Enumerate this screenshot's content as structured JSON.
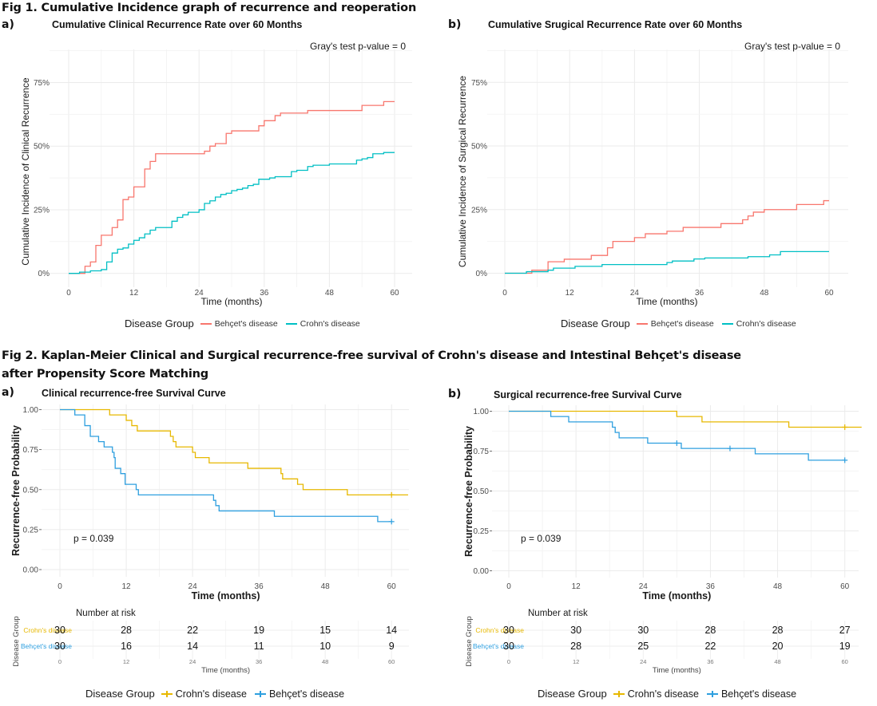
{
  "fig1": {
    "title": "Fig 1. Cumulative Incidence graph of recurrence and reoperation",
    "legend_title": "Disease Group",
    "legend_items": [
      "Behçet's disease",
      "Crohn's disease"
    ]
  },
  "fig2": {
    "title_line1": "Fig 2. Kaplan-Meier Clinical and Surgical recurrence-free survival of Crohn's disease and Intestinal Behçet's disease",
    "title_line2": "after Propensity Score Matching",
    "legend_title": "Disease Group",
    "legend_items": [
      "Crohn's disease",
      "Behçet's disease"
    ],
    "risk_title": "Number at risk",
    "risk_ylabel": "Disease Group",
    "risk_xlabel": "Time (months)",
    "risk_groups": [
      "Crohn's disease",
      "Behçet's disease"
    ]
  },
  "colors": {
    "behcet_ci": "#F8766D",
    "crohn_ci": "#00BFC4",
    "crohn_km": "#E7B800",
    "behcet_km": "#2E9FDF"
  },
  "chart_data": [
    {
      "id": "fig1a",
      "panel_label": "a)",
      "type": "line",
      "step": true,
      "title": "Cumulative Clinical Recurrence Rate over 60 Months",
      "xlabel": "Time (months)",
      "ylabel": "Cumulative Incidence of Clinical Recurrence",
      "xlim": [
        0,
        60
      ],
      "ylim": [
        0,
        0.9
      ],
      "xticks": [
        0,
        12,
        24,
        36,
        48,
        60
      ],
      "yticks": [
        0,
        0.25,
        0.5,
        0.75
      ],
      "ytick_labels": [
        "0%",
        "25%",
        "50%",
        "75%"
      ],
      "annotation": "Gray's test p-value = 0",
      "grid": true,
      "legend_position": "bottom",
      "series": [
        {
          "name": "Behçet's disease",
          "color_key": "behcet_ci",
          "x": [
            0,
            2.0,
            3.0,
            4.0,
            5.0,
            6.0,
            8.0,
            9.0,
            10.0,
            11.0,
            12.0,
            14.0,
            15.0,
            16.0,
            25.0,
            26.0,
            27.0,
            29.0,
            30.0,
            35.0,
            36.0,
            38.0,
            39.0,
            44.0,
            54.0,
            58.0,
            60.0
          ],
          "y": [
            0,
            0.0,
            0.028,
            0.045,
            0.11,
            0.15,
            0.18,
            0.21,
            0.29,
            0.3,
            0.34,
            0.41,
            0.44,
            0.47,
            0.48,
            0.5,
            0.51,
            0.55,
            0.56,
            0.58,
            0.6,
            0.62,
            0.63,
            0.64,
            0.66,
            0.675,
            0.675
          ]
        },
        {
          "name": "Crohn's disease",
          "color_key": "crohn_ci",
          "x": [
            0,
            2.0,
            4.0,
            6.0,
            7.0,
            8.0,
            9.0,
            10.0,
            11.0,
            12.0,
            13.0,
            14.0,
            15.0,
            16.0,
            19.0,
            20.0,
            21.0,
            22.0,
            24.0,
            25.0,
            26.0,
            27.0,
            28.0,
            29.0,
            30.0,
            31.0,
            32.0,
            33.0,
            34.0,
            35.0,
            37.0,
            38.0,
            41.0,
            42.0,
            44.0,
            45.0,
            48.0,
            53.0,
            54.0,
            55.0,
            56.0,
            58.0,
            60.0
          ],
          "y": [
            0,
            0.005,
            0.01,
            0.015,
            0.045,
            0.08,
            0.095,
            0.1,
            0.115,
            0.13,
            0.14,
            0.155,
            0.17,
            0.18,
            0.205,
            0.22,
            0.23,
            0.24,
            0.25,
            0.275,
            0.285,
            0.3,
            0.31,
            0.315,
            0.325,
            0.33,
            0.335,
            0.345,
            0.35,
            0.37,
            0.375,
            0.38,
            0.4,
            0.405,
            0.42,
            0.425,
            0.43,
            0.445,
            0.45,
            0.455,
            0.47,
            0.475,
            0.475
          ]
        }
      ]
    },
    {
      "id": "fig1b",
      "panel_label": "b)",
      "type": "line",
      "step": true,
      "title": "Cumulative Srugical Recurrence Rate over 60 Months",
      "xlabel": "Time (months)",
      "ylabel": "Cumulative Incidence of Surgical Recurrence",
      "xlim": [
        0,
        60
      ],
      "ylim": [
        0,
        0.9
      ],
      "xticks": [
        0,
        12,
        24,
        36,
        48,
        60
      ],
      "yticks": [
        0,
        0.25,
        0.5,
        0.75
      ],
      "ytick_labels": [
        "0%",
        "25%",
        "50%",
        "75%"
      ],
      "annotation": "Gray's test p-value = 0",
      "grid": true,
      "legend_position": "bottom",
      "series": [
        {
          "name": "Behçet's disease",
          "color_key": "behcet_ci",
          "x": [
            0,
            4.0,
            5.0,
            8.0,
            11.0,
            16.0,
            19.0,
            20.0,
            24.0,
            26.0,
            30.0,
            33.0,
            40.0,
            44.0,
            45.0,
            46.0,
            48.0,
            54.0,
            59.0,
            60.0
          ],
          "y": [
            0,
            0.0,
            0.012,
            0.045,
            0.055,
            0.07,
            0.1,
            0.125,
            0.14,
            0.155,
            0.165,
            0.18,
            0.195,
            0.21,
            0.225,
            0.24,
            0.25,
            0.27,
            0.285,
            0.285
          ]
        },
        {
          "name": "Crohn's disease",
          "color_key": "crohn_ci",
          "x": [
            0,
            4.0,
            8.0,
            9.0,
            13.0,
            18.0,
            30.0,
            31.0,
            35.0,
            37.0,
            45.0,
            49.0,
            51.0,
            60.0
          ],
          "y": [
            0,
            0.006,
            0.012,
            0.02,
            0.027,
            0.034,
            0.042,
            0.048,
            0.056,
            0.06,
            0.065,
            0.072,
            0.085,
            0.085
          ]
        }
      ]
    },
    {
      "id": "fig2a",
      "panel_label": "a)",
      "type": "line",
      "step": true,
      "title": "Clinical recurrence-free Survival Curve",
      "xlabel": "Time (months)",
      "ylabel": "Recurrence-free Probability",
      "xlim": [
        0,
        63
      ],
      "ylim": [
        0,
        1
      ],
      "xticks": [
        0,
        12,
        24,
        36,
        48,
        60
      ],
      "yticks": [
        0,
        0.25,
        0.5,
        0.75,
        1.0
      ],
      "ytick_labels": [
        "0.00",
        "0.25",
        "0.50",
        "0.75",
        "1.00"
      ],
      "annotation": "p = 0.039",
      "grid": true,
      "legend_position": "bottom",
      "series": [
        {
          "name": "Crohn's disease",
          "color_key": "crohn_km",
          "x": [
            0,
            9.0,
            12.0,
            13.0,
            14.0,
            20.0,
            20.5,
            21.0,
            24.0,
            24.5,
            27.0,
            34.0,
            40.0,
            40.3,
            43.0,
            44.0,
            52.0,
            63.0
          ],
          "y": [
            1.0,
            0.967,
            0.933,
            0.9,
            0.867,
            0.833,
            0.8,
            0.767,
            0.733,
            0.7,
            0.667,
            0.633,
            0.6,
            0.567,
            0.533,
            0.5,
            0.467,
            0.467
          ],
          "censor_x": [
            60
          ],
          "censor_y": [
            0.467
          ]
        },
        {
          "name": "Behçet's disease",
          "color_key": "behcet_km",
          "x": [
            0,
            2.7,
            4.5,
            5.5,
            7.0,
            8.0,
            9.5,
            9.8,
            10.0,
            11.0,
            11.8,
            13.8,
            14.2,
            27.8,
            28.2,
            28.8,
            38.8,
            57.5,
            60.0
          ],
          "y": [
            1.0,
            0.967,
            0.9,
            0.833,
            0.8,
            0.767,
            0.733,
            0.7,
            0.633,
            0.6,
            0.533,
            0.5,
            0.467,
            0.433,
            0.4,
            0.367,
            0.333,
            0.3,
            0.3
          ],
          "censor_x": [
            60
          ],
          "censor_y": [
            0.3
          ]
        }
      ],
      "risk_table": {
        "times": [
          0,
          12,
          24,
          36,
          48,
          60
        ],
        "rows": [
          {
            "group": "Crohn's disease",
            "values": [
              30,
              28,
              22,
              19,
              15,
              14
            ]
          },
          {
            "group": "Behçet's disease",
            "values": [
              30,
              16,
              14,
              11,
              10,
              9
            ]
          }
        ]
      }
    },
    {
      "id": "fig2b",
      "panel_label": "b)",
      "type": "line",
      "step": true,
      "title": "Surgical recurrence-free Survival Curve",
      "xlabel": "Time (months)",
      "ylabel": "Recurrence-free Probability",
      "xlim": [
        0,
        63
      ],
      "ylim": [
        0,
        1
      ],
      "xticks": [
        0,
        12,
        24,
        36,
        48,
        60
      ],
      "yticks": [
        0,
        0.25,
        0.5,
        0.75,
        1.0
      ],
      "ytick_labels": [
        "0.00",
        "0.25",
        "0.50",
        "0.75",
        "1.00"
      ],
      "annotation": "p = 0.039",
      "grid": true,
      "legend_position": "bottom",
      "series": [
        {
          "name": "Crohn's disease",
          "color_key": "crohn_km",
          "x": [
            0,
            30.0,
            34.5,
            50.0,
            63.0
          ],
          "y": [
            1.0,
            0.967,
            0.933,
            0.9,
            0.9
          ],
          "censor_x": [
            60
          ],
          "censor_y": [
            0.9
          ]
        },
        {
          "name": "Behçet's disease",
          "color_key": "behcet_km",
          "x": [
            0,
            7.5,
            10.7,
            18.5,
            19.0,
            19.7,
            24.8,
            30.8,
            44.0,
            53.5,
            60.0
          ],
          "y": [
            1.0,
            0.967,
            0.933,
            0.9,
            0.867,
            0.833,
            0.8,
            0.767,
            0.733,
            0.693,
            0.693
          ],
          "censor_x": [
            30,
            39.5,
            60
          ],
          "censor_y": [
            0.8,
            0.767,
            0.693
          ]
        }
      ],
      "risk_table": {
        "times": [
          0,
          12,
          24,
          36,
          48,
          60
        ],
        "rows": [
          {
            "group": "Crohn's disease",
            "values": [
              30,
              30,
              30,
              28,
              28,
              27
            ]
          },
          {
            "group": "Behçet's disease",
            "values": [
              30,
              28,
              25,
              22,
              20,
              19
            ]
          }
        ]
      }
    }
  ]
}
